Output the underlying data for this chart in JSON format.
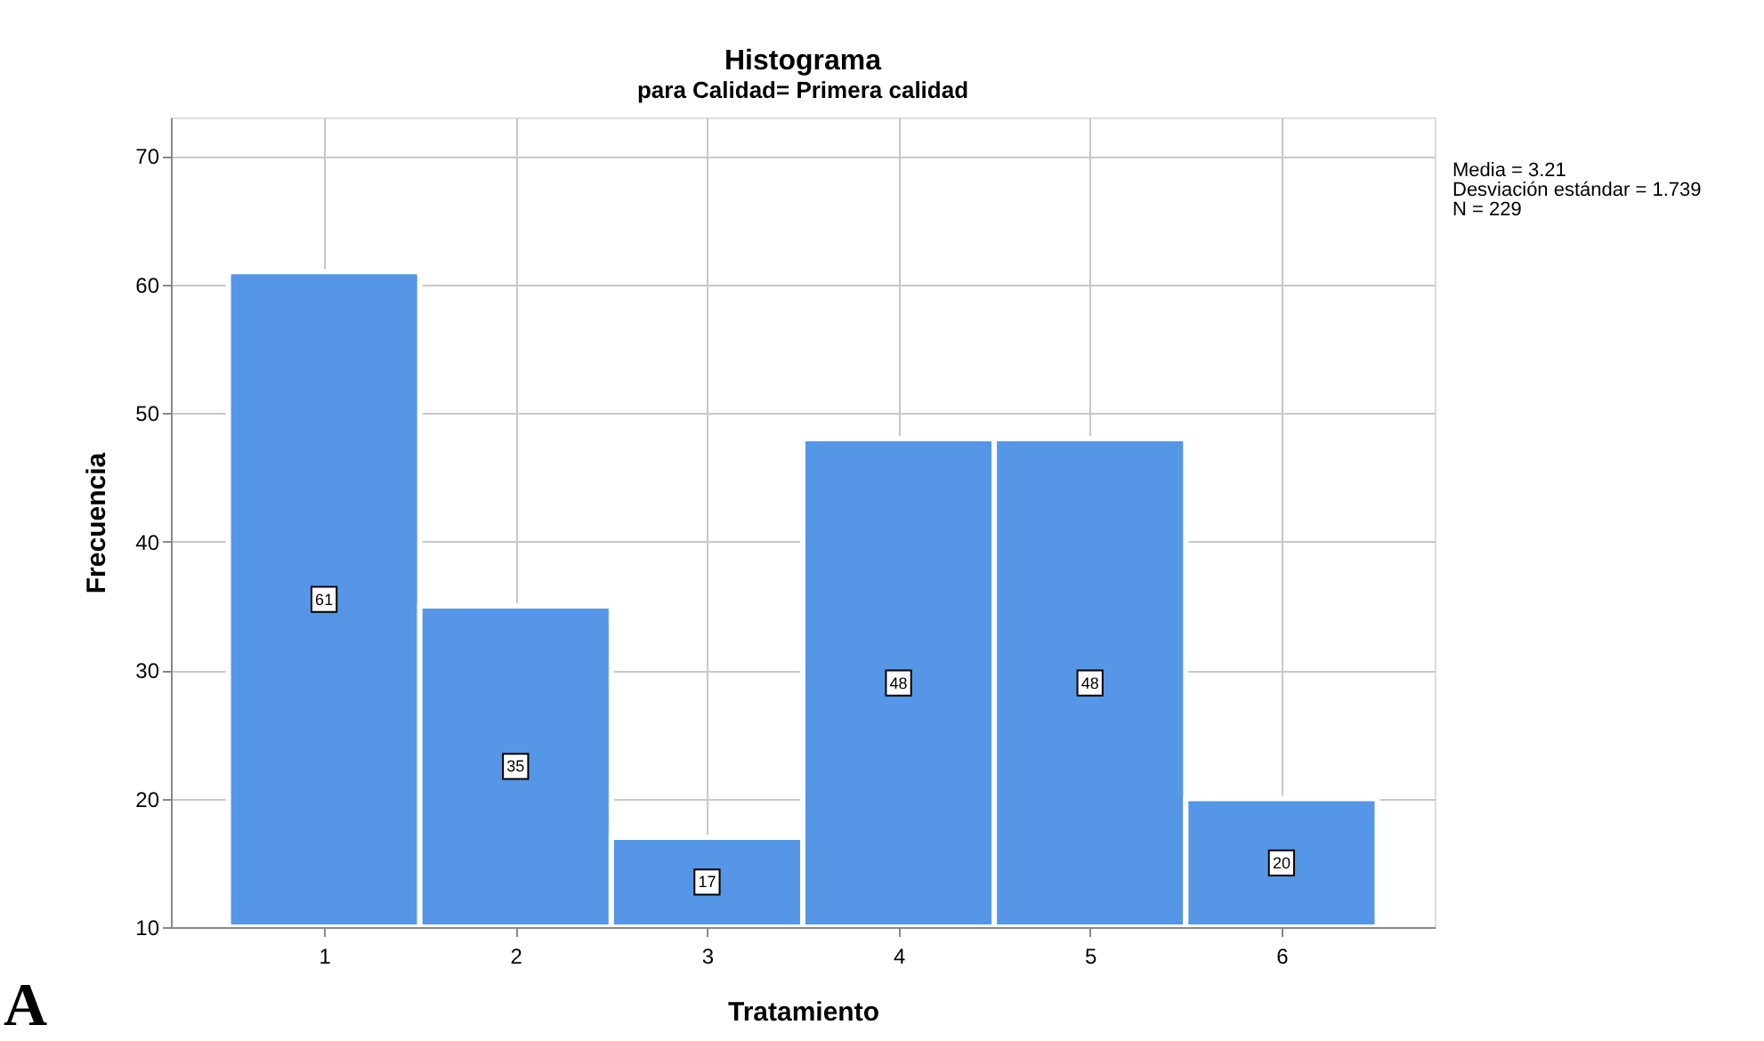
{
  "chart_data": {
    "type": "histogram",
    "title": "Histograma",
    "subtitle": "para Calidad= Primera calidad",
    "xlabel": "Tratamiento",
    "ylabel": "Frecuencia",
    "bins": [
      0.5,
      1.5,
      2.5,
      3.5,
      4.5,
      5.5,
      6.5
    ],
    "values": [
      61,
      35,
      17,
      48,
      48,
      20
    ],
    "color": "#5596e6",
    "xlim": [
      0.2,
      6.8
    ],
    "xticks": [
      1,
      2,
      3,
      4,
      5,
      6
    ],
    "ylim": [
      10,
      73
    ],
    "yticks": [
      10,
      20,
      30,
      40,
      50,
      60,
      70
    ],
    "grid": true,
    "data_labels": true,
    "annotations": [
      "Media = 3.21",
      "Desviación estándar = 1.739",
      "N = 229",
      "A"
    ]
  }
}
